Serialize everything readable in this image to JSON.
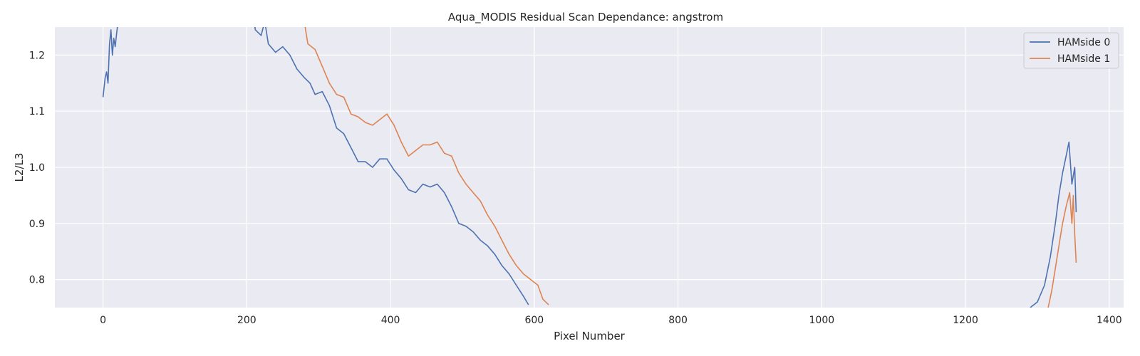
{
  "chart_data": {
    "type": "line",
    "title": "Aqua_MODIS Residual Scan Dependance: angstrom",
    "xlabel": "Pixel Number",
    "ylabel": "L2/L3",
    "xlim": [
      -67,
      1420
    ],
    "ylim": [
      0.75,
      1.25
    ],
    "xticks": [
      0,
      200,
      400,
      600,
      800,
      1000,
      1200,
      1400
    ],
    "xtick_labels": [
      "0",
      "200",
      "400",
      "600",
      "800",
      "1000",
      "1200",
      "1400"
    ],
    "yticks": [
      0.8,
      0.9,
      1.0,
      1.1,
      1.2
    ],
    "ytick_labels": [
      "0.8",
      "0.9",
      "1.0",
      "1.1",
      "1.2"
    ],
    "grid": true,
    "legend_position": "top-right",
    "series": [
      {
        "name": "HAMside 0",
        "color": "#4c72b0",
        "segments": [
          [
            [
              0,
              1.125
            ],
            [
              3,
              1.16
            ],
            [
              5,
              1.17
            ],
            [
              7,
              1.15
            ],
            [
              9,
              1.22
            ],
            [
              11,
              1.245
            ],
            [
              13,
              1.2
            ],
            [
              15,
              1.23
            ],
            [
              17,
              1.215
            ],
            [
              19,
              1.24
            ],
            [
              21,
              1.26
            ]
          ],
          [
            [
              210,
              1.26
            ],
            [
              212,
              1.245
            ],
            [
              220,
              1.235
            ],
            [
              225,
              1.26
            ],
            [
              230,
              1.22
            ],
            [
              240,
              1.205
            ],
            [
              250,
              1.215
            ],
            [
              260,
              1.2
            ],
            [
              270,
              1.175
            ],
            [
              280,
              1.16
            ],
            [
              288,
              1.15
            ],
            [
              295,
              1.13
            ],
            [
              305,
              1.135
            ],
            [
              315,
              1.11
            ],
            [
              325,
              1.07
            ],
            [
              335,
              1.06
            ],
            [
              345,
              1.035
            ],
            [
              355,
              1.01
            ],
            [
              365,
              1.01
            ],
            [
              375,
              1.0
            ],
            [
              385,
              1.015
            ],
            [
              395,
              1.015
            ],
            [
              405,
              0.995
            ],
            [
              415,
              0.98
            ],
            [
              425,
              0.96
            ],
            [
              435,
              0.955
            ],
            [
              445,
              0.97
            ],
            [
              455,
              0.965
            ],
            [
              465,
              0.97
            ],
            [
              475,
              0.955
            ],
            [
              485,
              0.93
            ],
            [
              495,
              0.9
            ],
            [
              505,
              0.895
            ],
            [
              515,
              0.885
            ],
            [
              525,
              0.87
            ],
            [
              535,
              0.86
            ],
            [
              545,
              0.845
            ],
            [
              555,
              0.825
            ],
            [
              565,
              0.81
            ],
            [
              575,
              0.79
            ],
            [
              585,
              0.77
            ],
            [
              592,
              0.755
            ]
          ],
          [
            [
              1290,
              0.75
            ],
            [
              1300,
              0.76
            ],
            [
              1310,
              0.79
            ],
            [
              1318,
              0.84
            ],
            [
              1325,
              0.9
            ],
            [
              1330,
              0.95
            ],
            [
              1335,
              0.99
            ],
            [
              1340,
              1.02
            ],
            [
              1344,
              1.045
            ],
            [
              1348,
              0.97
            ],
            [
              1352,
              1.0
            ],
            [
              1354,
              0.92
            ]
          ]
        ]
      },
      {
        "name": "HAMside 1",
        "color": "#dd8452",
        "segments": [
          [
            [
              280,
              1.26
            ],
            [
              285,
              1.22
            ],
            [
              295,
              1.21
            ],
            [
              305,
              1.18
            ],
            [
              315,
              1.15
            ],
            [
              325,
              1.13
            ],
            [
              335,
              1.125
            ],
            [
              345,
              1.095
            ],
            [
              355,
              1.09
            ],
            [
              365,
              1.08
            ],
            [
              375,
              1.075
            ],
            [
              385,
              1.085
            ],
            [
              395,
              1.095
            ],
            [
              405,
              1.075
            ],
            [
              415,
              1.045
            ],
            [
              425,
              1.02
            ],
            [
              435,
              1.03
            ],
            [
              445,
              1.04
            ],
            [
              455,
              1.04
            ],
            [
              465,
              1.045
            ],
            [
              475,
              1.025
            ],
            [
              485,
              1.02
            ],
            [
              495,
              0.99
            ],
            [
              505,
              0.97
            ],
            [
              515,
              0.955
            ],
            [
              525,
              0.94
            ],
            [
              535,
              0.915
            ],
            [
              545,
              0.895
            ],
            [
              555,
              0.87
            ],
            [
              565,
              0.845
            ],
            [
              575,
              0.825
            ],
            [
              585,
              0.81
            ],
            [
              595,
              0.8
            ],
            [
              605,
              0.79
            ],
            [
              612,
              0.765
            ],
            [
              620,
              0.755
            ]
          ],
          [
            [
              1315,
              0.75
            ],
            [
              1320,
              0.78
            ],
            [
              1325,
              0.82
            ],
            [
              1330,
              0.86
            ],
            [
              1335,
              0.9
            ],
            [
              1340,
              0.93
            ],
            [
              1345,
              0.955
            ],
            [
              1348,
              0.9
            ],
            [
              1350,
              0.95
            ],
            [
              1352,
              0.88
            ],
            [
              1354,
              0.83
            ]
          ]
        ]
      }
    ]
  }
}
